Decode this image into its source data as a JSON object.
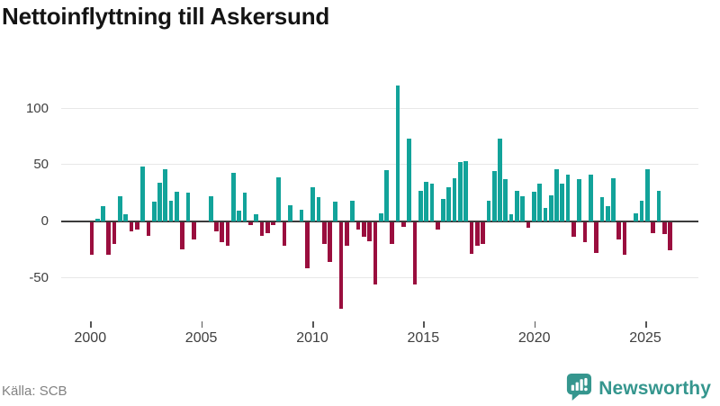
{
  "title": "Nettoinflyttning till Askersund",
  "source": "Källa: SCB",
  "branding": {
    "name": "Newsworthy",
    "icon": "newsworthy-speech-bubble-chart-icon",
    "color": "#35968E"
  },
  "colors": {
    "positive_bar": "#12A39A",
    "negative_bar": "#9A0E3E",
    "gridline": "#E8E8E8",
    "zero_line": "#3B3B3B",
    "axis_text": "#3F3F3F",
    "title_text": "#141414",
    "source_text": "#828282"
  },
  "chart_data": {
    "type": "bar",
    "title": "Nettoinflyttning till Askersund",
    "frequency": "quarterly",
    "start": "2000-Q1",
    "end": "2025-Q3",
    "values": [
      -29,
      2,
      13,
      -29,
      -19,
      22,
      6,
      -8,
      -7,
      48,
      -12,
      17,
      34,
      46,
      18,
      26,
      -24,
      25,
      -15,
      0,
      0,
      22,
      -8,
      -18,
      -21,
      43,
      9,
      25,
      -3,
      6,
      -12,
      -10,
      -3,
      39,
      -21,
      14,
      0,
      10,
      -41,
      30,
      21,
      -19,
      -35,
      17,
      -77,
      -21,
      18,
      -7,
      -13,
      -17,
      -55,
      7,
      45,
      -19,
      120,
      -4,
      73,
      -55,
      27,
      35,
      33,
      -7,
      20,
      30,
      38,
      52,
      53,
      -28,
      -21,
      -19,
      18,
      44,
      73,
      37,
      6,
      27,
      22,
      -5,
      26,
      33,
      12,
      23,
      46,
      33,
      41,
      -13,
      37,
      -18,
      41,
      -27,
      21,
      13,
      38,
      -15,
      -29,
      0,
      7,
      18,
      46,
      -10,
      27,
      -11,
      -25
    ],
    "x_ticks": [
      "2000",
      "2005",
      "2010",
      "2015",
      "2020",
      "2025"
    ],
    "y_ticks": [
      100,
      50,
      0,
      -50
    ],
    "ylim": [
      -85,
      130
    ],
    "xlabel": "",
    "ylabel": "",
    "grid": "horizontal",
    "legend": "none"
  }
}
